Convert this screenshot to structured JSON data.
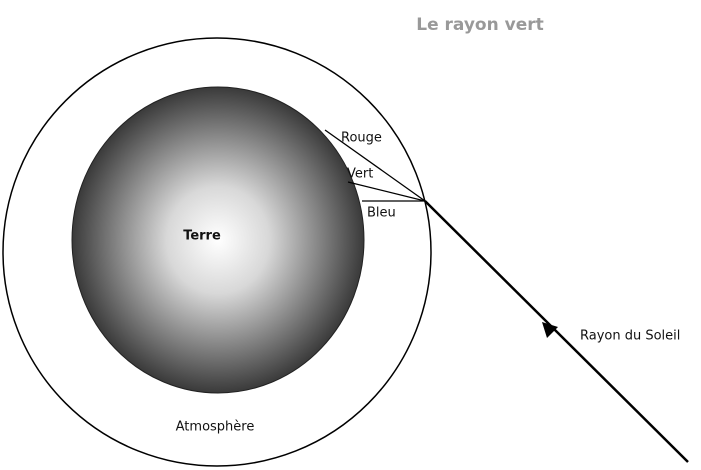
{
  "title": "Le rayon vert",
  "labels": {
    "red": "Rouge",
    "green": "Vert",
    "blue": "Bleu",
    "earth": "Terre",
    "sun_ray": "Rayon du Soleil",
    "atmosphere": "Atmosphère"
  }
}
